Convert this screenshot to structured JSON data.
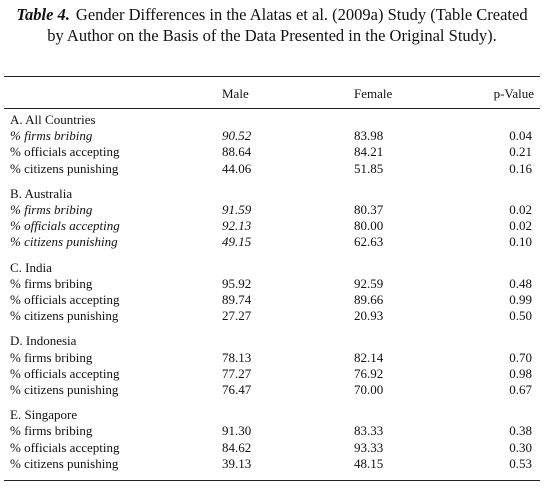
{
  "title": {
    "label": "Table 4.",
    "text": "Gender Differences in the Alatas et al. (2009a) Study (Table Created by Author on the Basis of the Data Presented in the Original Study)."
  },
  "table": {
    "columns": [
      "Male",
      "Female",
      "p-Value"
    ],
    "groups": [
      {
        "name": "A. All Countries",
        "rows": [
          {
            "label": "% firms bribing",
            "values": [
              "90.52",
              "83.98",
              "0.04"
            ]
          },
          {
            "label": "% officials accepting",
            "values": [
              "88.64",
              "84.21",
              "0.21"
            ]
          },
          {
            "label": "% citizens punishing",
            "values": [
              "44.06",
              "51.85",
              "0.16"
            ]
          }
        ]
      },
      {
        "name": "B. Australia",
        "rows": [
          {
            "label": "% firms bribing",
            "values": [
              "91.59",
              "80.37",
              "0.02"
            ]
          },
          {
            "label": "% officials accepting",
            "values": [
              "92.13",
              "80.00",
              "0.02"
            ]
          },
          {
            "label": "% citizens punishing",
            "values": [
              "49.15",
              "62.63",
              "0.10"
            ]
          }
        ]
      },
      {
        "name": "C. India",
        "rows": [
          {
            "label": "% firms bribing",
            "values": [
              "95.92",
              "92.59",
              "0.48"
            ]
          },
          {
            "label": "% officials accepting",
            "values": [
              "89.74",
              "89.66",
              "0.99"
            ]
          },
          {
            "label": "% citizens punishing",
            "values": [
              "27.27",
              "20.93",
              "0.50"
            ]
          }
        ]
      },
      {
        "name": "D. Indonesia",
        "rows": [
          {
            "label": "% firms bribing",
            "values": [
              "78.13",
              "82.14",
              "0.70"
            ]
          },
          {
            "label": "% officials accepting",
            "values": [
              "77.27",
              "76.92",
              "0.98"
            ]
          },
          {
            "label": "% citizens punishing",
            "values": [
              "76.47",
              "70.00",
              "0.67"
            ]
          }
        ]
      },
      {
        "name": "E. Singapore",
        "rows": [
          {
            "label": "% firms bribing",
            "values": [
              "91.30",
              "83.33",
              "0.38"
            ]
          },
          {
            "label": "% officials accepting",
            "values": [
              "84.62",
              "93.33",
              "0.30"
            ]
          },
          {
            "label": "% citizens punishing",
            "values": [
              "39.13",
              "48.15",
              "0.53"
            ]
          }
        ]
      }
    ]
  }
}
